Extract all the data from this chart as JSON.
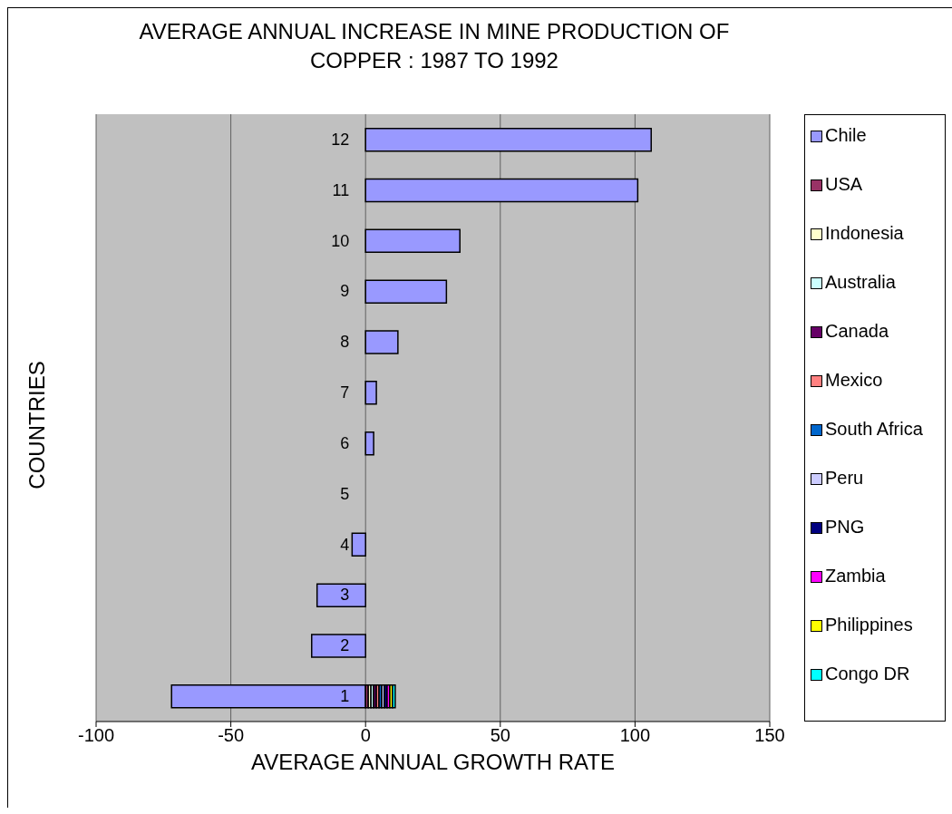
{
  "chart_data": {
    "type": "bar",
    "orientation": "horizontal",
    "stacked": true,
    "title": "AVERAGE ANNUAL INCREASE IN MINE PRODUCTION OF COPPER : 1987 TO 1992",
    "xlabel": "AVERAGE ANNUAL GROWTH RATE",
    "ylabel": "COUNTRIES",
    "categories": [
      "12",
      "11",
      "10",
      "9",
      "8",
      "7",
      "6",
      "5",
      "4",
      "3",
      "2",
      "1"
    ],
    "series": [
      {
        "name": "Chile",
        "color": "#9999ff",
        "values": [
          106,
          101,
          35,
          30,
          12,
          4,
          3,
          null,
          -5,
          -18,
          -20,
          -72
        ]
      },
      {
        "name": "USA",
        "color": "#993366",
        "values": [
          null,
          null,
          null,
          null,
          null,
          null,
          null,
          null,
          null,
          null,
          null,
          1
        ]
      },
      {
        "name": "Indonesia",
        "color": "#ffffcc",
        "values": [
          null,
          null,
          null,
          null,
          null,
          null,
          null,
          null,
          null,
          null,
          null,
          1
        ]
      },
      {
        "name": "Australia",
        "color": "#ccffff",
        "values": [
          null,
          null,
          null,
          null,
          null,
          null,
          null,
          null,
          null,
          null,
          null,
          1
        ]
      },
      {
        "name": "Canada",
        "color": "#660066",
        "values": [
          null,
          null,
          null,
          null,
          null,
          null,
          null,
          null,
          null,
          null,
          null,
          1
        ]
      },
      {
        "name": "Mexico",
        "color": "#ff8080",
        "values": [
          null,
          null,
          null,
          null,
          null,
          null,
          null,
          null,
          null,
          null,
          null,
          1
        ]
      },
      {
        "name": "South Africa",
        "color": "#0066cc",
        "values": [
          null,
          null,
          null,
          null,
          null,
          null,
          null,
          null,
          null,
          null,
          null,
          1
        ]
      },
      {
        "name": "Peru",
        "color": "#ccccff",
        "values": [
          null,
          null,
          null,
          null,
          null,
          null,
          null,
          null,
          null,
          null,
          null,
          1
        ]
      },
      {
        "name": "PNG",
        "color": "#000080",
        "values": [
          null,
          null,
          null,
          null,
          null,
          null,
          null,
          null,
          null,
          null,
          null,
          1
        ]
      },
      {
        "name": "Zambia",
        "color": "#ff00ff",
        "values": [
          null,
          null,
          null,
          null,
          null,
          null,
          null,
          null,
          null,
          null,
          null,
          1
        ]
      },
      {
        "name": "Philippines",
        "color": "#ffff00",
        "values": [
          null,
          null,
          null,
          null,
          null,
          null,
          null,
          null,
          null,
          null,
          null,
          1
        ]
      },
      {
        "name": "Congo DR",
        "color": "#00ffff",
        "values": [
          null,
          null,
          null,
          null,
          null,
          null,
          null,
          null,
          null,
          null,
          null,
          1
        ]
      }
    ],
    "xlim": [
      -100,
      150
    ],
    "xticks": [
      -100,
      -50,
      0,
      50,
      100,
      150
    ],
    "grid": "x",
    "legend": "right"
  }
}
